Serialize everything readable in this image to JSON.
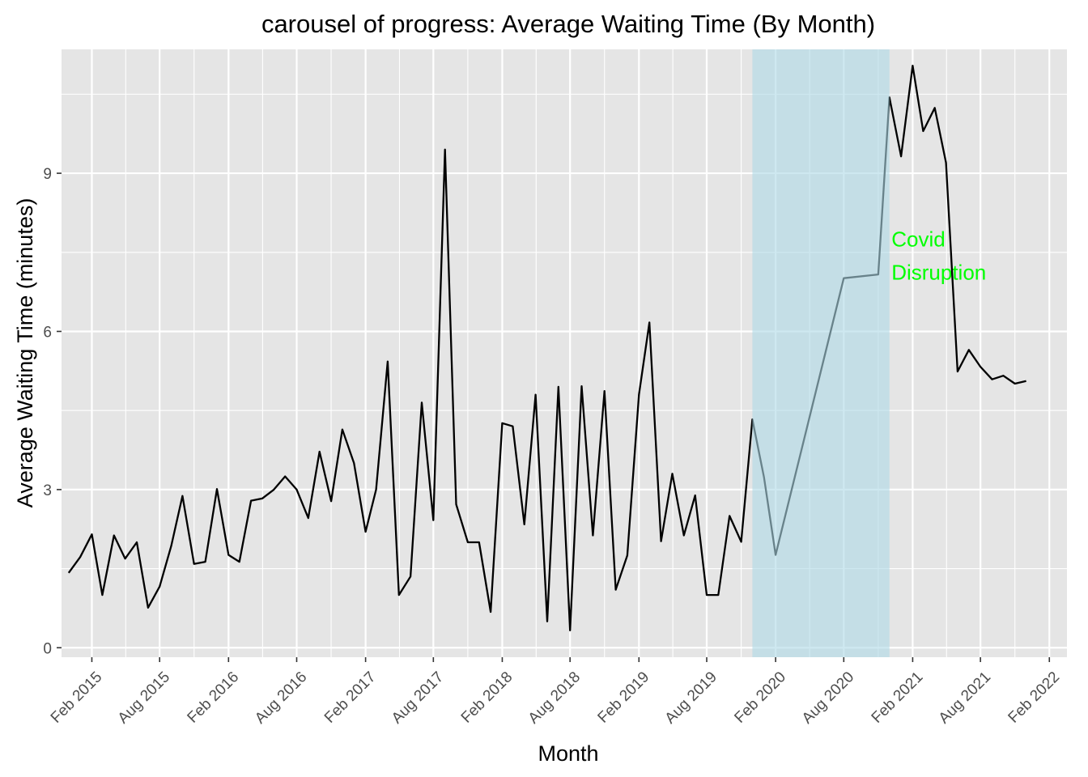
{
  "chart_data": {
    "type": "line",
    "title": "carousel of progress: Average Waiting Time (By Month)",
    "xlabel": "Month",
    "ylabel": "Average Waiting Time (minutes)",
    "xlim": [
      "2014-11-12",
      "2022-03-20"
    ],
    "ylim": [
      -0.18,
      11.35
    ],
    "y_ticks": [
      0,
      3,
      6,
      9
    ],
    "x_ticks": [
      {
        "label": "Feb 2015",
        "date": "2015-02-01"
      },
      {
        "label": "Aug 2015",
        "date": "2015-08-01"
      },
      {
        "label": "Feb 2016",
        "date": "2016-02-01"
      },
      {
        "label": "Aug 2016",
        "date": "2016-08-01"
      },
      {
        "label": "Feb 2017",
        "date": "2017-02-01"
      },
      {
        "label": "Aug 2017",
        "date": "2017-08-01"
      },
      {
        "label": "Feb 2018",
        "date": "2018-02-01"
      },
      {
        "label": "Aug 2018",
        "date": "2018-08-01"
      },
      {
        "label": "Feb 2019",
        "date": "2019-02-01"
      },
      {
        "label": "Aug 2019",
        "date": "2019-08-01"
      },
      {
        "label": "Feb 2020",
        "date": "2020-02-01"
      },
      {
        "label": "Aug 2020",
        "date": "2020-08-01"
      },
      {
        "label": "Feb 2021",
        "date": "2021-02-01"
      },
      {
        "label": "Aug 2021",
        "date": "2021-08-01"
      },
      {
        "label": "Feb 2022",
        "date": "2022-02-01"
      }
    ],
    "grid": true,
    "colors": {
      "panel": "#e5e5e5",
      "grid": "#ffffff",
      "line": "#000000",
      "shade": "#add8e6",
      "annotation": "#00ff00"
    },
    "shaded_region": {
      "start": "2019-12-01",
      "end": "2020-12-01"
    },
    "annotation": {
      "lines": [
        "Covid",
        "Disruption"
      ],
      "date": "2020-12-15",
      "y": 7.3
    },
    "series": [
      {
        "x": [
          "2014-12-01",
          "2015-01-01",
          "2015-02-01",
          "2015-03-01",
          "2015-04-01",
          "2015-05-01",
          "2015-06-01",
          "2015-07-01",
          "2015-08-01",
          "2015-09-01",
          "2015-10-01",
          "2015-11-01",
          "2015-12-01",
          "2016-01-01",
          "2016-02-01",
          "2016-03-01",
          "2016-04-01",
          "2016-05-01",
          "2016-06-01",
          "2016-07-01",
          "2016-08-01",
          "2016-09-01",
          "2016-10-01",
          "2016-11-01",
          "2016-12-01",
          "2017-01-01",
          "2017-02-01",
          "2017-03-01",
          "2017-04-01",
          "2017-05-01",
          "2017-06-01",
          "2017-07-01",
          "2017-08-01",
          "2017-09-01",
          "2017-10-01",
          "2017-11-01",
          "2017-12-01",
          "2018-01-01",
          "2018-02-01",
          "2018-03-01",
          "2018-04-01",
          "2018-05-01",
          "2018-06-01",
          "2018-07-01",
          "2018-08-01",
          "2018-09-01",
          "2018-10-01",
          "2018-11-01",
          "2018-12-01",
          "2019-01-01",
          "2019-02-01",
          "2019-03-01",
          "2019-04-01",
          "2019-05-01",
          "2019-06-01",
          "2019-07-01",
          "2019-08-01",
          "2019-09-01",
          "2019-10-01",
          "2019-11-01",
          "2019-12-01",
          "2020-01-01",
          "2020-02-01",
          "2020-08-01",
          "2020-11-01",
          "2020-12-01",
          "2021-01-01",
          "2021-02-01",
          "2021-03-01",
          "2021-04-01",
          "2021-05-01",
          "2021-06-01",
          "2021-07-01",
          "2021-08-01",
          "2021-09-01",
          "2021-10-01",
          "2021-11-01",
          "2021-12-01"
        ],
        "y": [
          1.42,
          1.72,
          2.15,
          1.0,
          2.13,
          1.69,
          2.0,
          0.76,
          1.16,
          1.93,
          2.88,
          1.59,
          1.63,
          3.01,
          1.76,
          1.63,
          2.79,
          2.83,
          3.0,
          3.25,
          3.0,
          2.46,
          3.72,
          2.78,
          4.14,
          3.5,
          2.2,
          3.0,
          5.43,
          1.0,
          1.35,
          4.65,
          2.42,
          9.45,
          2.72,
          2.0,
          2.0,
          0.68,
          4.26,
          4.2,
          2.34,
          4.8,
          0.5,
          4.95,
          0.33,
          4.96,
          2.13,
          4.87,
          1.1,
          1.75,
          4.8,
          6.17,
          2.02,
          3.3,
          2.13,
          2.89,
          1.0,
          1.0,
          2.5,
          2.01,
          4.33,
          3.23,
          1.76,
          7.01,
          7.08,
          10.44,
          9.32,
          11.04,
          9.8,
          10.24,
          9.2,
          5.24,
          5.65,
          5.33,
          5.09,
          5.16,
          5.01,
          5.06
        ]
      }
    ]
  }
}
